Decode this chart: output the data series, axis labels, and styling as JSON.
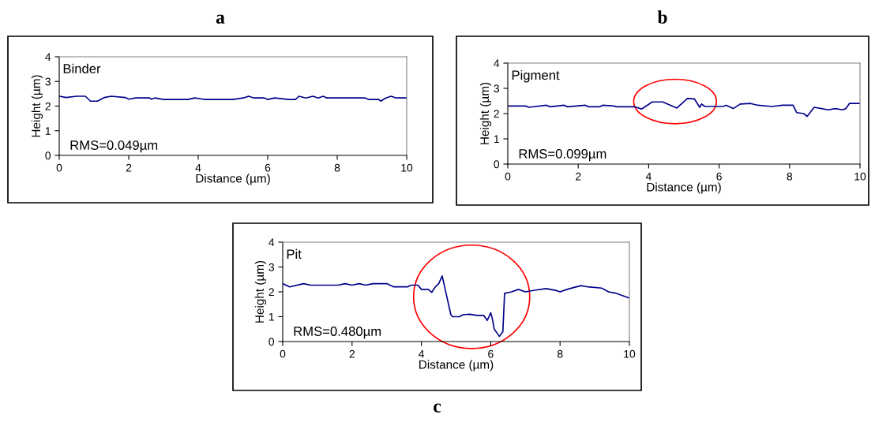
{
  "chart_data": [
    {
      "type": "line",
      "title": "a",
      "xlabel": "Distance (µm)",
      "ylabel": "Height (µm)",
      "annotations": [
        "Binder",
        "RMS=0.049µm"
      ],
      "xlim": [
        0,
        10
      ],
      "ylim": [
        0,
        4
      ],
      "xticks": [
        0,
        2,
        4,
        6,
        8,
        10
      ],
      "yticks": [
        0,
        1,
        2,
        3,
        4
      ],
      "grid": false,
      "legend": false,
      "series": [
        {
          "color": "#00008b",
          "x": [
            0,
            0.2,
            0.5,
            0.75,
            0.9,
            1.1,
            1.3,
            1.5,
            1.9,
            2.0,
            2.2,
            2.6,
            2.65,
            2.75,
            3.0,
            3.7,
            3.9,
            4.2,
            5.0,
            5.3,
            5.45,
            5.6,
            5.9,
            6.0,
            6.2,
            6.6,
            6.8,
            6.9,
            7.1,
            7.3,
            7.45,
            7.6,
            7.7,
            8.8,
            8.9,
            9.2,
            9.25,
            9.4,
            9.55,
            9.7,
            10
          ],
          "values": [
            2.4,
            2.35,
            2.4,
            2.4,
            2.2,
            2.2,
            2.35,
            2.4,
            2.35,
            2.28,
            2.33,
            2.33,
            2.28,
            2.33,
            2.27,
            2.27,
            2.33,
            2.27,
            2.27,
            2.33,
            2.4,
            2.33,
            2.33,
            2.27,
            2.33,
            2.27,
            2.27,
            2.4,
            2.33,
            2.4,
            2.33,
            2.4,
            2.33,
            2.33,
            2.27,
            2.27,
            2.2,
            2.33,
            2.4,
            2.33,
            2.33
          ]
        }
      ]
    },
    {
      "type": "line",
      "title": "b",
      "xlabel": "Distance (µm)",
      "ylabel": "Height (µm)",
      "annotations": [
        "Pigment",
        "RMS=0.099µm"
      ],
      "xlim": [
        0,
        10
      ],
      "ylim": [
        0,
        4
      ],
      "xticks": [
        0,
        2,
        4,
        6,
        8,
        10
      ],
      "yticks": [
        0,
        1,
        2,
        3,
        4
      ],
      "grid": false,
      "legend": false,
      "series": [
        {
          "color": "#00008b",
          "x": [
            0,
            0.5,
            0.6,
            1.1,
            1.2,
            1.6,
            1.7,
            2.2,
            2.3,
            2.6,
            2.7,
            3.0,
            3.1,
            3.6,
            3.8,
            4.1,
            4.4,
            4.8,
            5.1,
            5.3,
            5.45,
            5.5,
            5.6,
            5.8,
            6.1,
            6.2,
            6.4,
            6.6,
            6.9,
            7.1,
            7.5,
            7.8,
            8.1,
            8.2,
            8.4,
            8.5,
            8.7,
            8.9,
            9.1,
            9.3,
            9.5,
            9.6,
            9.7,
            10
          ],
          "values": [
            2.3,
            2.3,
            2.25,
            2.33,
            2.27,
            2.33,
            2.27,
            2.33,
            2.27,
            2.27,
            2.33,
            2.3,
            2.27,
            2.27,
            2.18,
            2.46,
            2.46,
            2.22,
            2.6,
            2.58,
            2.25,
            2.38,
            2.28,
            2.28,
            2.28,
            2.33,
            2.2,
            2.38,
            2.4,
            2.33,
            2.28,
            2.33,
            2.33,
            2.04,
            2.0,
            1.89,
            2.25,
            2.2,
            2.15,
            2.2,
            2.15,
            2.2,
            2.4,
            2.4
          ]
        }
      ]
    },
    {
      "type": "line",
      "title": "c",
      "xlabel": "Distance (µm)",
      "ylabel": "Height (µm)",
      "annotations": [
        "Pit",
        "RMS=0.480µm"
      ],
      "xlim": [
        0,
        10
      ],
      "ylim": [
        0,
        4
      ],
      "xticks": [
        0,
        2,
        4,
        6,
        8,
        10
      ],
      "yticks": [
        0,
        1,
        2,
        3,
        4
      ],
      "grid": false,
      "legend": false,
      "series": [
        {
          "color": "#00008b",
          "x": [
            0,
            0.2,
            0.6,
            0.8,
            1.6,
            1.8,
            2.0,
            2.2,
            2.4,
            2.6,
            3.0,
            3.2,
            3.6,
            3.7,
            3.9,
            4.0,
            4.2,
            4.3,
            4.4,
            4.5,
            4.6,
            4.85,
            4.9,
            5.1,
            5.2,
            5.4,
            5.6,
            5.8,
            5.9,
            6.0,
            6.05,
            6.1,
            6.25,
            6.35,
            6.4,
            6.6,
            6.8,
            7.0,
            7.3,
            7.6,
            7.9,
            8.0,
            8.2,
            8.6,
            8.8,
            9.2,
            9.4,
            9.6,
            9.8,
            10
          ],
          "values": [
            2.33,
            2.2,
            2.33,
            2.27,
            2.27,
            2.33,
            2.27,
            2.33,
            2.27,
            2.33,
            2.33,
            2.2,
            2.2,
            2.27,
            2.27,
            2.1,
            2.1,
            1.98,
            2.2,
            2.33,
            2.64,
            1.08,
            1.0,
            1.0,
            1.08,
            1.1,
            1.05,
            1.05,
            0.85,
            1.16,
            0.9,
            0.5,
            0.21,
            0.4,
            1.94,
            2.0,
            2.1,
            2.0,
            2.07,
            2.13,
            2.05,
            2.0,
            2.1,
            2.25,
            2.2,
            2.15,
            2.0,
            1.95,
            1.85,
            1.75
          ]
        }
      ]
    }
  ]
}
